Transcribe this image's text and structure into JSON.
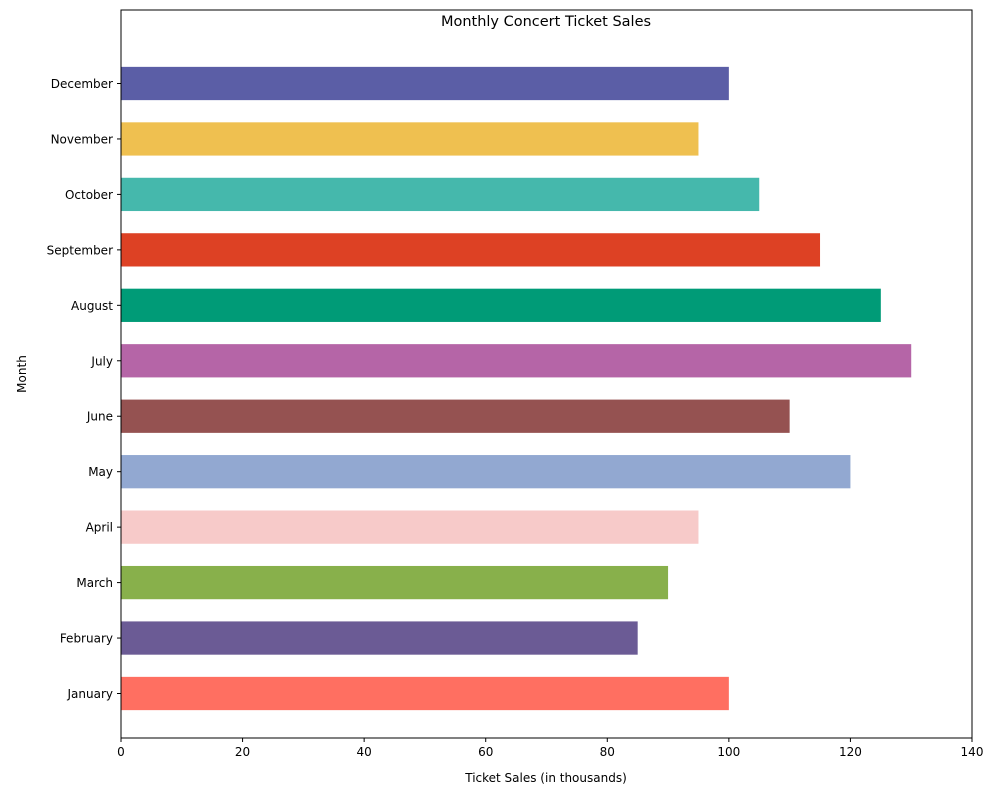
{
  "chart_data": {
    "type": "bar",
    "orientation": "horizontal",
    "title": "Monthly Concert Ticket Sales",
    "xlabel": "Ticket Sales (in thousands)",
    "ylabel": "Month",
    "categories": [
      "January",
      "February",
      "March",
      "April",
      "May",
      "June",
      "July",
      "August",
      "September",
      "October",
      "November",
      "December"
    ],
    "values": [
      100,
      85,
      90,
      95,
      120,
      110,
      130,
      125,
      115,
      105,
      95,
      100
    ],
    "colors": [
      "#ff6f61",
      "#6b5b95",
      "#88b04b",
      "#f7cac9",
      "#92a8d1",
      "#955251",
      "#b565a7",
      "#009b77",
      "#dd4124",
      "#45b8ac",
      "#efc050",
      "#5b5ea6"
    ],
    "xlim": [
      0,
      140
    ],
    "xticks": [
      0,
      20,
      40,
      60,
      80,
      100,
      120,
      140
    ],
    "grid": false,
    "legend": "none"
  }
}
